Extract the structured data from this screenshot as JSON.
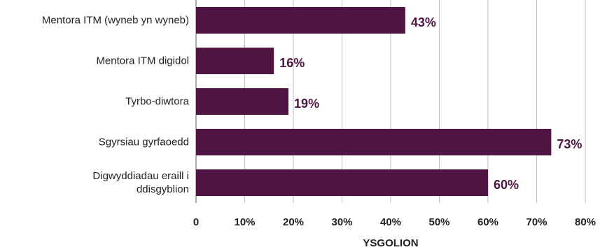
{
  "chart_data": {
    "type": "bar",
    "orientation": "horizontal",
    "categories": [
      "Mentora ITM (wyneb yn wyneb)",
      "Mentora ITM digidol",
      "Tyrbo-diwtora",
      "Sgyrsiau gyrfaoedd",
      "Digwyddiadau eraill i\nddisgyblion"
    ],
    "values": [
      43,
      16,
      19,
      73,
      60
    ],
    "value_labels": [
      "43%",
      "16%",
      "19%",
      "73%",
      "60%"
    ],
    "color": "#4e1442",
    "xlabel": "YSGOLION",
    "xlim": [
      0,
      80
    ],
    "xticks": [
      0,
      {
        "value": 10,
        "label": "10%"
      },
      {
        "value": 20,
        "label": "20%"
      },
      {
        "value": 30,
        "label": "30%"
      },
      {
        "value": 40,
        "label": "40%"
      },
      {
        "value": 50,
        "label": "50%"
      },
      {
        "value": 60,
        "label": "60%"
      },
      {
        "value": 70,
        "label": "70%"
      },
      {
        "value": 80,
        "label": "80%"
      }
    ],
    "grid": true
  }
}
